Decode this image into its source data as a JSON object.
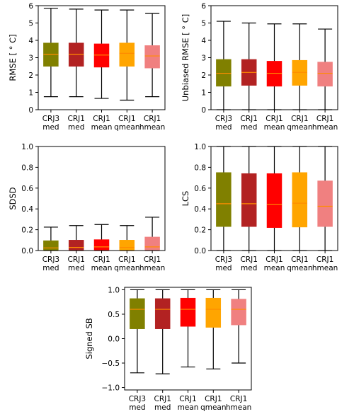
{
  "chart_data": [
    {
      "type": "box",
      "ylabel": "RMSE [$^\\circ C$]",
      "ylabel_display": "RMSE [ ° C]",
      "ylim": [
        0,
        6
      ],
      "yticks": [
        "0",
        "1",
        "2",
        "3",
        "4",
        "5",
        "6"
      ],
      "ytick_values": [
        0,
        1,
        2,
        3,
        4,
        5,
        6
      ],
      "categories": [
        {
          "line1": "CRJ3",
          "line2": "med"
        },
        {
          "line1": "CRJ1",
          "line2": "med"
        },
        {
          "line1": "CRJ1",
          "line2": "mean"
        },
        {
          "line1": "CRJ1",
          "line2": "qmean"
        },
        {
          "line1": "CRJ1",
          "line2": "hmean"
        }
      ],
      "boxes": [
        {
          "whislo": 0.75,
          "q1": 2.5,
          "med": 3.2,
          "q3": 3.85,
          "whishi": 5.85
        },
        {
          "whislo": 0.75,
          "q1": 2.5,
          "med": 3.2,
          "q3": 3.85,
          "whishi": 5.8
        },
        {
          "whislo": 0.65,
          "q1": 2.45,
          "med": 3.15,
          "q3": 3.8,
          "whishi": 5.75
        },
        {
          "whislo": 0.55,
          "q1": 2.5,
          "med": 3.25,
          "q3": 3.85,
          "whishi": 5.75
        },
        {
          "whislo": 0.75,
          "q1": 2.4,
          "med": 3.1,
          "q3": 3.7,
          "whishi": 5.55
        }
      ]
    },
    {
      "type": "box",
      "ylabel": "Unbiased RMSE [$^\\circ C$]",
      "ylabel_display": "Unbiased RMSE [ ° C]",
      "ylim": [
        0,
        6
      ],
      "yticks": [
        "0",
        "1",
        "2",
        "3",
        "4",
        "5",
        "6"
      ],
      "ytick_values": [
        0,
        1,
        2,
        3,
        4,
        5,
        6
      ],
      "categories": [
        {
          "line1": "CRJ3",
          "line2": "med"
        },
        {
          "line1": "CRJ1",
          "line2": "med"
        },
        {
          "line1": "CRJ1",
          "line2": "mean"
        },
        {
          "line1": "CRJ1",
          "line2": "qmean"
        },
        {
          "line1": "CRJ1",
          "line2": "hmean"
        }
      ],
      "boxes": [
        {
          "whislo": 0.0,
          "q1": 1.35,
          "med": 2.1,
          "q3": 2.9,
          "whishi": 5.1
        },
        {
          "whislo": 0.0,
          "q1": 1.4,
          "med": 2.15,
          "q3": 2.9,
          "whishi": 5.0
        },
        {
          "whislo": 0.0,
          "q1": 1.35,
          "med": 2.1,
          "q3": 2.8,
          "whishi": 4.95
        },
        {
          "whislo": 0.0,
          "q1": 1.4,
          "med": 2.15,
          "q3": 2.85,
          "whishi": 4.95
        },
        {
          "whislo": 0.0,
          "q1": 1.35,
          "med": 2.1,
          "q3": 2.75,
          "whishi": 4.65
        }
      ]
    },
    {
      "type": "box",
      "ylabel": "SDSD",
      "ylabel_display": "SDSD",
      "ylim": [
        0,
        1
      ],
      "yticks": [
        "0.0",
        "0.2",
        "0.4",
        "0.6",
        "0.8",
        "1.0"
      ],
      "ytick_values": [
        0,
        0.2,
        0.4,
        0.6,
        0.8,
        1.0
      ],
      "categories": [
        {
          "line1": "CRJ3",
          "line2": "med"
        },
        {
          "line1": "CRJ1",
          "line2": "med"
        },
        {
          "line1": "CRJ1",
          "line2": "mean"
        },
        {
          "line1": "CRJ1",
          "line2": "qmean"
        },
        {
          "line1": "CRJ1",
          "line2": "hmean"
        }
      ],
      "boxes": [
        {
          "whislo": 0.0,
          "q1": 0.005,
          "med": 0.025,
          "q3": 0.095,
          "whishi": 0.225
        },
        {
          "whislo": 0.0,
          "q1": 0.005,
          "med": 0.03,
          "q3": 0.1,
          "whishi": 0.24
        },
        {
          "whislo": 0.0,
          "q1": 0.005,
          "med": 0.035,
          "q3": 0.105,
          "whishi": 0.25
        },
        {
          "whislo": 0.0,
          "q1": 0.005,
          "med": 0.03,
          "q3": 0.1,
          "whishi": 0.24
        },
        {
          "whislo": 0.0,
          "q1": 0.005,
          "med": 0.035,
          "q3": 0.13,
          "whishi": 0.32
        }
      ]
    },
    {
      "type": "box",
      "ylabel": "LCS",
      "ylabel_display": "LCS",
      "ylim": [
        0,
        1
      ],
      "yticks": [
        "0.0",
        "0.2",
        "0.4",
        "0.6",
        "0.8",
        "1.0"
      ],
      "ytick_values": [
        0,
        0.2,
        0.4,
        0.6,
        0.8,
        1.0
      ],
      "categories": [
        {
          "line1": "CRJ3",
          "line2": "med"
        },
        {
          "line1": "CRJ1",
          "line2": "med"
        },
        {
          "line1": "CRJ1",
          "line2": "mean"
        },
        {
          "line1": "CRJ1",
          "line2": "qmean"
        },
        {
          "line1": "CRJ1",
          "line2": "hmean"
        }
      ],
      "boxes": [
        {
          "whislo": 0.0,
          "q1": 0.23,
          "med": 0.45,
          "q3": 0.75,
          "whishi": 1.0
        },
        {
          "whislo": 0.0,
          "q1": 0.23,
          "med": 0.45,
          "q3": 0.74,
          "whishi": 1.0
        },
        {
          "whislo": 0.0,
          "q1": 0.22,
          "med": 0.445,
          "q3": 0.74,
          "whishi": 1.0
        },
        {
          "whislo": 0.0,
          "q1": 0.225,
          "med": 0.455,
          "q3": 0.75,
          "whishi": 1.0
        },
        {
          "whislo": 0.0,
          "q1": 0.23,
          "med": 0.425,
          "q3": 0.67,
          "whishi": 1.0
        }
      ]
    },
    {
      "type": "box",
      "ylabel": "Signed SB",
      "ylabel_display": "Signed SB",
      "ylim": [
        -1.05,
        1.05
      ],
      "yticks": [
        "−1.0",
        "−0.5",
        "0.0",
        "0.5",
        "1.0"
      ],
      "ytick_values": [
        -1.0,
        -0.5,
        0.0,
        0.5,
        1.0
      ],
      "categories": [
        {
          "line1": "CRJ3",
          "line2": "med"
        },
        {
          "line1": "CRJ1",
          "line2": "med"
        },
        {
          "line1": "CRJ1",
          "line2": "mean"
        },
        {
          "line1": "CRJ1",
          "line2": "qmean"
        },
        {
          "line1": "CRJ1",
          "line2": "hmean"
        }
      ],
      "boxes": [
        {
          "whislo": -0.7,
          "q1": 0.2,
          "med": 0.6,
          "q3": 0.82,
          "whishi": 1.0
        },
        {
          "whislo": -0.72,
          "q1": 0.2,
          "med": 0.6,
          "q3": 0.82,
          "whishi": 1.0
        },
        {
          "whislo": -0.58,
          "q1": 0.25,
          "med": 0.6,
          "q3": 0.83,
          "whishi": 1.0
        },
        {
          "whislo": -0.62,
          "q1": 0.23,
          "med": 0.6,
          "q3": 0.83,
          "whishi": 1.0
        },
        {
          "whislo": -0.5,
          "q1": 0.28,
          "med": 0.6,
          "q3": 0.81,
          "whishi": 1.0
        }
      ]
    }
  ],
  "colors": {
    "boxes": [
      "#808000",
      "#b22222",
      "#ff0000",
      "#ffa500",
      "#f08080"
    ],
    "median": "#ff8c00",
    "axes": "#000000",
    "whisker": "#000000"
  }
}
